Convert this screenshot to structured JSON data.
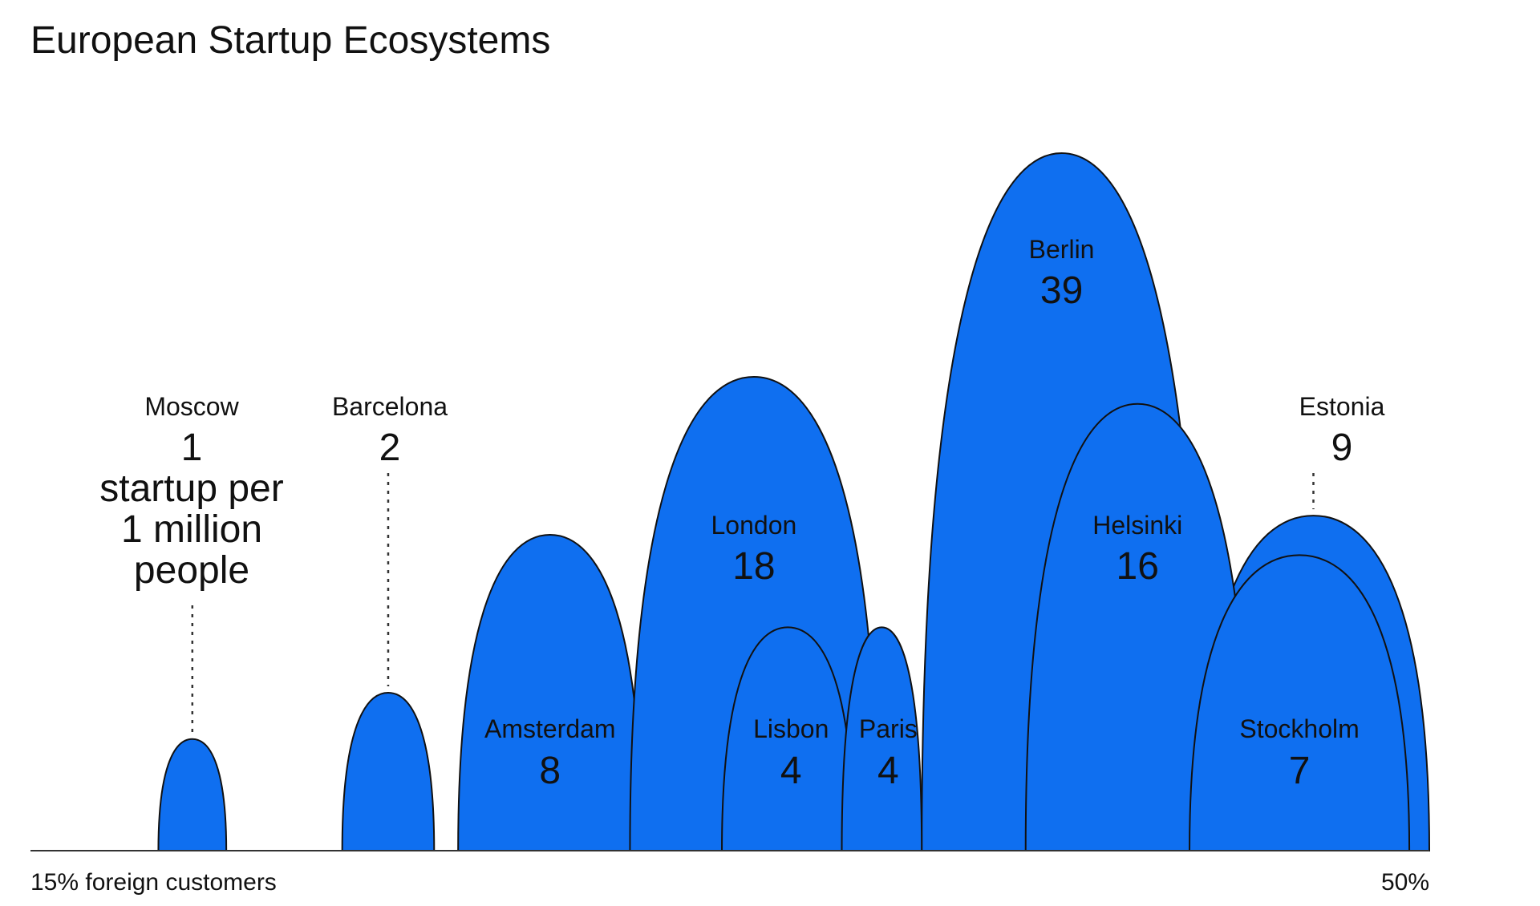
{
  "chart_data": {
    "type": "area",
    "title": "European Startup Ecosystems",
    "unit_note": [
      "startup per",
      "1 million",
      "people"
    ],
    "xlabel_min": "15% foreign customers",
    "xlabel_max": "50%",
    "xlim": [
      15,
      50
    ],
    "ylim": [
      0,
      40
    ],
    "fill_color": "#0f6ff0",
    "series": [
      {
        "name": "Moscow",
        "value": 1,
        "x_start": 18.2,
        "x_end": 19.9
      },
      {
        "name": "Barcelona",
        "value": 2,
        "x_start": 22.8,
        "x_end": 25.1
      },
      {
        "name": "Amsterdam",
        "value": 8,
        "x_start": 25.7,
        "x_end": 30.3
      },
      {
        "name": "London",
        "value": 18,
        "x_start": 30.0,
        "x_end": 36.2
      },
      {
        "name": "Berlin",
        "value": 39,
        "x_start": 37.3,
        "x_end": 44.3
      },
      {
        "name": "Estonia",
        "value": 9,
        "x_start": 44.2,
        "x_end": 50.0
      },
      {
        "name": "Helsinki",
        "value": 16,
        "x_start": 39.9,
        "x_end": 45.5
      },
      {
        "name": "Lisbon",
        "value": 4,
        "x_start": 32.3,
        "x_end": 35.6
      },
      {
        "name": "Paris",
        "value": 4,
        "x_start": 35.3,
        "x_end": 37.3
      },
      {
        "name": "Stockholm",
        "value": 7,
        "x_start": 44.0,
        "x_end": 49.5
      }
    ]
  }
}
